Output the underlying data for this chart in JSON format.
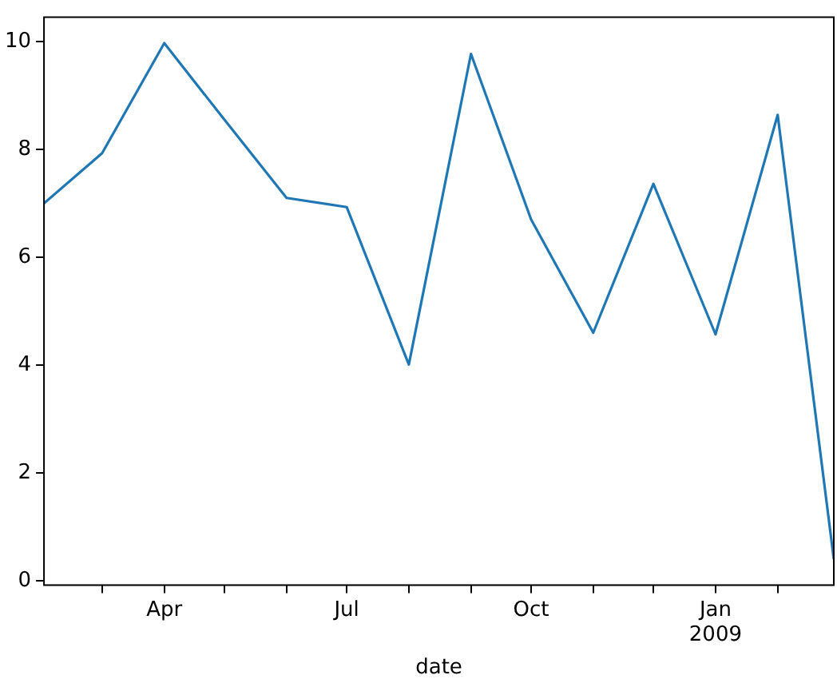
{
  "chart_data": {
    "type": "line",
    "xlabel": "date",
    "x": [
      "2008-02",
      "2008-03",
      "2008-04",
      "2008-05",
      "2008-06",
      "2008-07",
      "2008-08",
      "2008-09",
      "2008-10",
      "2008-11",
      "2008-12",
      "2009-01",
      "2009-02",
      "2009-03"
    ],
    "series": [
      {
        "color": "#1f77b4",
        "values": [
          7.0,
          7.93,
          9.97,
          8.55,
          7.1,
          6.93,
          4.01,
          9.77,
          6.7,
          4.6,
          7.36,
          4.57,
          8.64,
          0.4
        ]
      }
    ],
    "xlim": [
      "2008-02",
      "2009-03"
    ],
    "xticks": [
      {
        "value": "2008-03",
        "label": null
      },
      {
        "value": "2008-04",
        "label": "Apr"
      },
      {
        "value": "2008-05",
        "label": null
      },
      {
        "value": "2008-06",
        "label": null
      },
      {
        "value": "2008-07",
        "label": "Jul"
      },
      {
        "value": "2008-08",
        "label": null
      },
      {
        "value": "2008-09",
        "label": null
      },
      {
        "value": "2008-10",
        "label": "Oct"
      },
      {
        "value": "2008-11",
        "label": null
      },
      {
        "value": "2008-12",
        "label": null
      },
      {
        "value": "2009-01",
        "label": "Jan\n2009"
      },
      {
        "value": "2009-02",
        "label": null
      }
    ],
    "ylim": [
      -0.08,
      10.45
    ],
    "yticks": [
      0,
      2,
      4,
      6,
      8,
      10
    ],
    "grid": false,
    "legend": false,
    "marker": "none",
    "line_style": "solid"
  }
}
